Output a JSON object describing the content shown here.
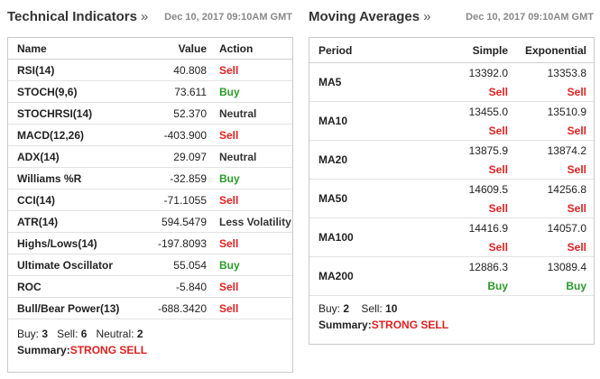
{
  "technical": {
    "title": "Technical Indicators",
    "title_arrow": "»",
    "date": "Dec 10, 2017 09:10AM GMT",
    "headers": {
      "name": "Name",
      "value": "Value",
      "action": "Action"
    },
    "rows": [
      {
        "name": "RSI(14)",
        "value": "40.808",
        "action": "Sell",
        "kind": "sell"
      },
      {
        "name": "STOCH(9,6)",
        "value": "73.611",
        "action": "Buy",
        "kind": "buy"
      },
      {
        "name": "STOCHRSI(14)",
        "value": "52.370",
        "action": "Neutral",
        "kind": "neutral"
      },
      {
        "name": "MACD(12,26)",
        "value": "-403.900",
        "action": "Sell",
        "kind": "sell"
      },
      {
        "name": "ADX(14)",
        "value": "29.097",
        "action": "Neutral",
        "kind": "neutral"
      },
      {
        "name": "Williams %R",
        "value": "-32.859",
        "action": "Buy",
        "kind": "buy"
      },
      {
        "name": "CCI(14)",
        "value": "-71.1055",
        "action": "Sell",
        "kind": "sell"
      },
      {
        "name": "ATR(14)",
        "value": "594.5479",
        "action": "Less Volatility",
        "kind": "neutral"
      },
      {
        "name": "Highs/Lows(14)",
        "value": "-197.8093",
        "action": "Sell",
        "kind": "sell"
      },
      {
        "name": "Ultimate Oscillator",
        "value": "55.054",
        "action": "Buy",
        "kind": "buy"
      },
      {
        "name": "ROC",
        "value": "-5.840",
        "action": "Sell",
        "kind": "sell"
      },
      {
        "name": "Bull/Bear Power(13)",
        "value": "-688.3420",
        "action": "Sell",
        "kind": "sell"
      }
    ],
    "summary": {
      "buy_label": "Buy:",
      "buy": "3",
      "sell_label": "Sell:",
      "sell": "6",
      "neutral_label": "Neutral:",
      "neutral": "2",
      "summary_label": "Summary:",
      "summary": "STRONG SELL"
    }
  },
  "moving": {
    "title": "Moving Averages",
    "title_arrow": "»",
    "date": "Dec 10, 2017 09:10AM GMT",
    "headers": {
      "period": "Period",
      "simple": "Simple",
      "exponential": "Exponential"
    },
    "rows": [
      {
        "period": "MA5",
        "simple": "13392.0",
        "simple_action": "Sell",
        "simple_kind": "sell",
        "exp": "13353.8",
        "exp_action": "Sell",
        "exp_kind": "sell"
      },
      {
        "period": "MA10",
        "simple": "13455.0",
        "simple_action": "Sell",
        "simple_kind": "sell",
        "exp": "13510.9",
        "exp_action": "Sell",
        "exp_kind": "sell"
      },
      {
        "period": "MA20",
        "simple": "13875.9",
        "simple_action": "Sell",
        "simple_kind": "sell",
        "exp": "13874.2",
        "exp_action": "Sell",
        "exp_kind": "sell"
      },
      {
        "period": "MA50",
        "simple": "14609.5",
        "simple_action": "Sell",
        "simple_kind": "sell",
        "exp": "14256.8",
        "exp_action": "Sell",
        "exp_kind": "sell"
      },
      {
        "period": "MA100",
        "simple": "14416.9",
        "simple_action": "Sell",
        "simple_kind": "sell",
        "exp": "14057.0",
        "exp_action": "Sell",
        "exp_kind": "sell"
      },
      {
        "period": "MA200",
        "simple": "12886.3",
        "simple_action": "Buy",
        "simple_kind": "buy",
        "exp": "13089.4",
        "exp_action": "Buy",
        "exp_kind": "buy"
      }
    ],
    "summary": {
      "buy_label": "Buy:",
      "buy": "2",
      "sell_label": "Sell:",
      "sell": "10",
      "summary_label": "Summary:",
      "summary": "STRONG SELL"
    }
  },
  "colors": {
    "sell": "#e02020",
    "buy": "#2a9a2a",
    "border": "#c9c9c9"
  }
}
